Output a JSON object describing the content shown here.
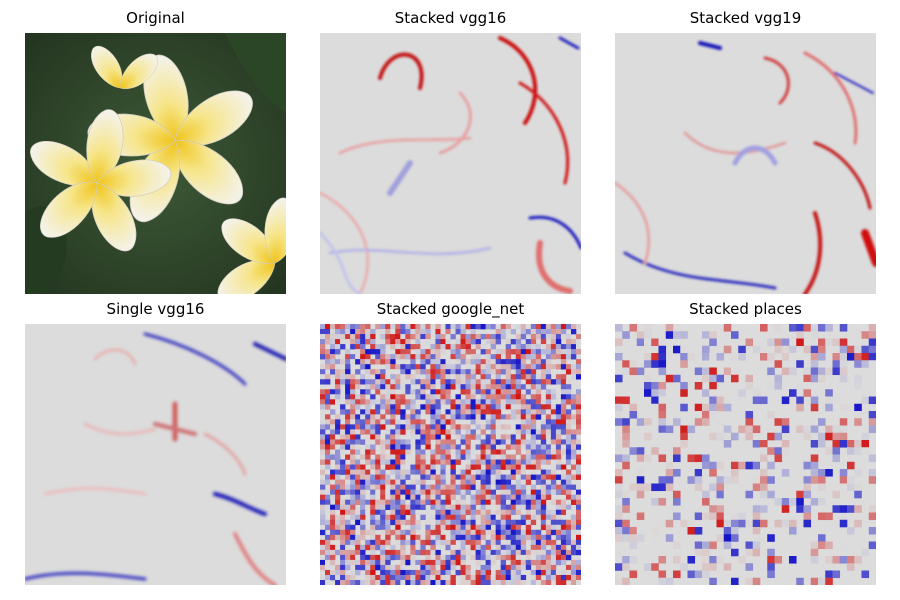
{
  "figure": {
    "panels": [
      {
        "title": "Original",
        "kind": "photo",
        "icon": "flower-photo"
      },
      {
        "title": "Stacked vgg16",
        "kind": "smooth-heatmap",
        "icon": "saliency-map"
      },
      {
        "title": "Stacked vgg19",
        "kind": "smooth-heatmap",
        "icon": "saliency-map"
      },
      {
        "title": "Single vgg16",
        "kind": "smooth-heatmap",
        "icon": "saliency-map"
      },
      {
        "title": "Stacked google_net",
        "kind": "noisy-heatmap",
        "icon": "saliency-map"
      },
      {
        "title": "Stacked places",
        "kind": "blocky-heatmap",
        "icon": "saliency-map"
      }
    ],
    "colors": {
      "background": "#dcdcdc",
      "positive": "#d01010",
      "negative": "#1010c8",
      "petal": "#f3f1ea",
      "petal_center": "#f0c418",
      "leaf": "#2f4a2a"
    }
  }
}
